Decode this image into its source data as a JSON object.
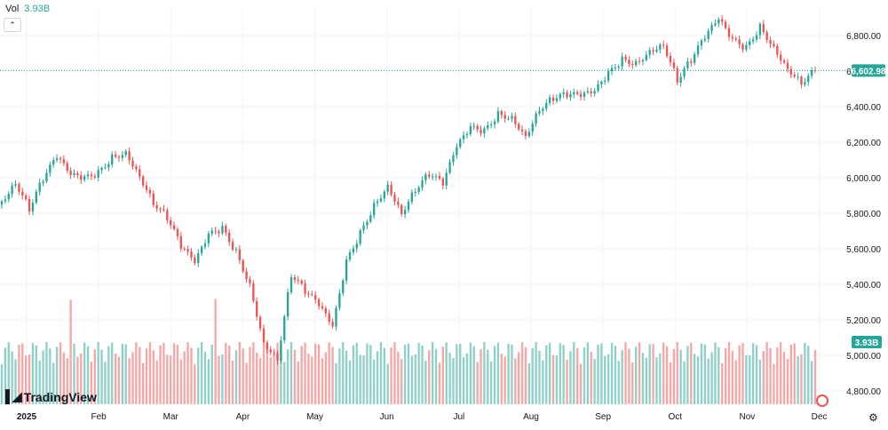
{
  "legend": {
    "label": "Vol",
    "value": "3.93B"
  },
  "badges": {
    "price": "6,602.98",
    "volume": "3.93B"
  },
  "branding": {
    "logo_text": "TradingView"
  },
  "colors": {
    "up": "#26a69a",
    "down": "#ef5350",
    "up_volume": "#8fd1c9",
    "down_volume": "#f5a7a5",
    "grid": "#f0f3fa",
    "axis_text": "#131722"
  },
  "icons": {
    "collapse": "chevron-up-icon",
    "settings": "gear-icon",
    "logo": "tradingview-logo-icon"
  },
  "chart_data": {
    "type": "candlestick",
    "y_axis": {
      "range": [
        4700,
        6960
      ],
      "ticks": [
        "4,800.00",
        "5,000.00",
        "5,200.00",
        "5,400.00",
        "5,600.00",
        "5,800.00",
        "6,000.00",
        "6,200.00",
        "6,400.00",
        "6,600.00",
        "6,800.00"
      ],
      "tick_values": [
        4800,
        5000,
        5200,
        5400,
        5600,
        5800,
        6000,
        6200,
        6400,
        6600,
        6800
      ]
    },
    "x_axis": {
      "labels": [
        "2025",
        "Feb",
        "Mar",
        "Apr",
        "May",
        "Jun",
        "Jul",
        "Aug",
        "Sep",
        "Oct",
        "Nov",
        "Dec"
      ]
    },
    "last_price": 6602.98,
    "last_volume": "3.93B",
    "grid": true,
    "series": [
      {
        "date": "Jan 02",
        "close": 5868
      },
      {
        "date": "Jan 06",
        "close": 5975
      },
      {
        "date": "Jan 10",
        "close": 5827
      },
      {
        "date": "Jan 17",
        "close": 5996
      },
      {
        "date": "Jan 23",
        "close": 6118
      },
      {
        "date": "Jan 27",
        "close": 6012
      },
      {
        "date": "Feb 03",
        "close": 5994
      },
      {
        "date": "Feb 07",
        "close": 6025
      },
      {
        "date": "Feb 13",
        "close": 6115
      },
      {
        "date": "Feb 19",
        "close": 6144
      },
      {
        "date": "Feb 21",
        "close": 6013
      },
      {
        "date": "Feb 27",
        "close": 5861
      },
      {
        "date": "Mar 04",
        "close": 5778
      },
      {
        "date": "Mar 10",
        "close": 5614
      },
      {
        "date": "Mar 13",
        "close": 5521
      },
      {
        "date": "Mar 19",
        "close": 5675
      },
      {
        "date": "Mar 26",
        "close": 5712
      },
      {
        "date": "Mar 28",
        "close": 5580
      },
      {
        "date": "Apr 03",
        "close": 5396
      },
      {
        "date": "Apr 04",
        "close": 5074
      },
      {
        "date": "Apr 08",
        "close": 4982
      },
      {
        "date": "Apr 09",
        "close": 5457
      },
      {
        "date": "Apr 11",
        "close": 5363
      },
      {
        "date": "Apr 17",
        "close": 5283
      },
      {
        "date": "Apr 21",
        "close": 5158
      },
      {
        "date": "Apr 25",
        "close": 5525
      },
      {
        "date": "May 02",
        "close": 5686
      },
      {
        "date": "May 12",
        "close": 5844
      },
      {
        "date": "May 16",
        "close": 5958
      },
      {
        "date": "May 23",
        "close": 5803
      },
      {
        "date": "Jun 02",
        "close": 5936
      },
      {
        "date": "Jun 11",
        "close": 6022
      },
      {
        "date": "Jun 20",
        "close": 5967
      },
      {
        "date": "Jun 27",
        "close": 6173
      },
      {
        "date": "Jul 03",
        "close": 6279
      },
      {
        "date": "Jul 11",
        "close": 6260
      },
      {
        "date": "Jul 23",
        "close": 6358
      },
      {
        "date": "Jul 31",
        "close": 6339
      },
      {
        "date": "Aug 01",
        "close": 6238
      },
      {
        "date": "Aug 08",
        "close": 6389
      },
      {
        "date": "Aug 15",
        "close": 6450
      },
      {
        "date": "Aug 22",
        "close": 6467
      },
      {
        "date": "Aug 29",
        "close": 6460
      },
      {
        "date": "Sep 05",
        "close": 6482
      },
      {
        "date": "Sep 12",
        "close": 6584
      },
      {
        "date": "Sep 19",
        "close": 6664
      },
      {
        "date": "Sep 26",
        "close": 6644
      },
      {
        "date": "Oct 03",
        "close": 6716
      },
      {
        "date": "Oct 08",
        "close": 6753
      },
      {
        "date": "Oct 10",
        "close": 6552
      },
      {
        "date": "Oct 17",
        "close": 6664
      },
      {
        "date": "Oct 24",
        "close": 6791
      },
      {
        "date": "Oct 29",
        "close": 6890
      },
      {
        "date": "Nov 04",
        "close": 6771
      },
      {
        "date": "Nov 07",
        "close": 6728
      },
      {
        "date": "Nov 12",
        "close": 6850
      },
      {
        "date": "Nov 14",
        "close": 6734
      },
      {
        "date": "Nov 18",
        "close": 6617
      },
      {
        "date": "Nov 20",
        "close": 6538
      },
      {
        "date": "Nov 21",
        "close": 6602.98
      }
    ]
  }
}
